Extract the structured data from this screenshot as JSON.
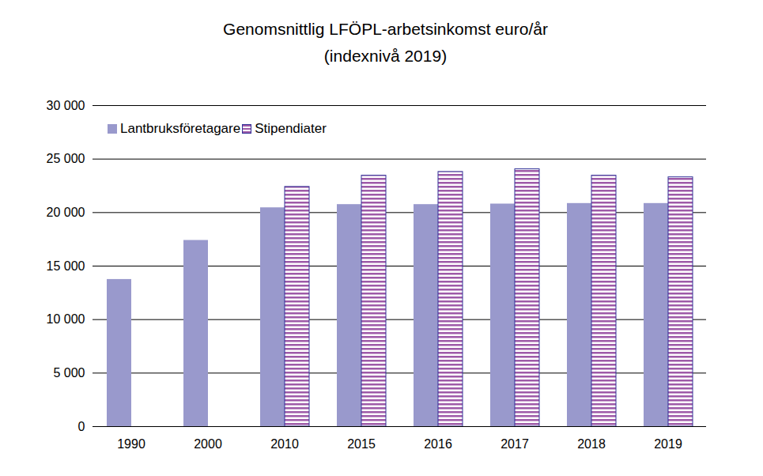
{
  "chart_data": {
    "type": "bar",
    "title": "Genomsnittlig LFÖPL-arbetsinkomst euro/år",
    "subtitle": "(indexnivå 2019)",
    "categories": [
      "1990",
      "2000",
      "2010",
      "2015",
      "2016",
      "2017",
      "2018",
      "2019"
    ],
    "series": [
      {
        "name": "Lantbruksföretagare",
        "color": "#9999cc",
        "values": [
          13750,
          17400,
          20450,
          20750,
          20750,
          20800,
          20850,
          20850
        ]
      },
      {
        "name": "Stipendiater",
        "color": "#9e5aa8",
        "values": [
          null,
          null,
          22400,
          23450,
          23800,
          24050,
          23450,
          23300
        ]
      }
    ],
    "ylim": [
      0,
      30000
    ],
    "yticks": [
      0,
      {
        "value": 5000,
        "label": "5 000"
      },
      {
        "value": 10000,
        "label": "10 000"
      },
      {
        "value": 15000,
        "label": "15 000"
      },
      {
        "value": 20000,
        "label": "20 000"
      },
      {
        "value": 25000,
        "label": "25 000"
      },
      {
        "value": 30000,
        "label": "30 000"
      }
    ],
    "grid": true,
    "legend": "top-left"
  }
}
